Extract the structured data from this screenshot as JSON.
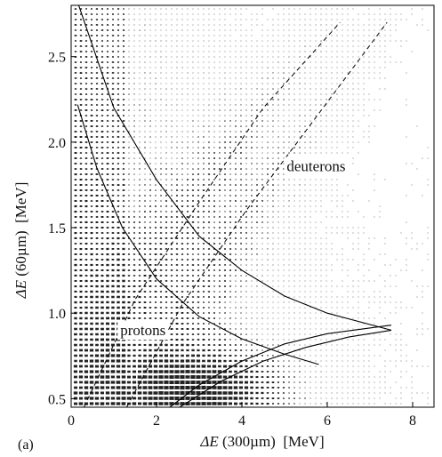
{
  "chart_data": {
    "type": "scatter",
    "panel_label": "(a)",
    "xlabel": {
      "symbol": "ΔE",
      "rest": " (300µm)  [MeV]"
    },
    "ylabel": {
      "symbol": "ΔE",
      "rest": " (60µm)  [MeV]"
    },
    "xlim": [
      0,
      8.5
    ],
    "ylim": [
      0.45,
      2.8
    ],
    "x_ticks": [
      0,
      2,
      4,
      6,
      8
    ],
    "y_ticks": [
      0.5,
      1.0,
      1.5,
      2.0,
      2.5
    ],
    "x_tick_labels": [
      "0",
      "2",
      "4",
      "6",
      "8"
    ],
    "y_tick_labels": [
      "0.5",
      "1.0",
      "1.5",
      "2.0",
      "2.5"
    ],
    "annotations": [
      {
        "text": "deuterons",
        "x": 5.05,
        "y": 1.83
      },
      {
        "text": "protons",
        "x": 1.15,
        "y": 0.87
      }
    ],
    "series": [
      {
        "style": "solid",
        "points": [
          [
            0.15,
            2.82
          ],
          [
            1.0,
            2.2
          ],
          [
            2.0,
            1.78
          ],
          [
            3.0,
            1.45
          ],
          [
            4.0,
            1.25
          ],
          [
            5.0,
            1.1
          ],
          [
            6.0,
            1.0
          ],
          [
            7.5,
            0.9
          ]
        ]
      },
      {
        "style": "solid",
        "points": [
          [
            0.15,
            2.22
          ],
          [
            0.6,
            1.85
          ],
          [
            1.2,
            1.5
          ],
          [
            2.0,
            1.2
          ],
          [
            3.0,
            0.98
          ],
          [
            4.0,
            0.85
          ],
          [
            5.0,
            0.76
          ],
          [
            5.8,
            0.7
          ]
        ]
      },
      {
        "style": "solid",
        "points": [
          [
            2.15,
            0.42
          ],
          [
            3.0,
            0.58
          ],
          [
            4.0,
            0.72
          ],
          [
            5.0,
            0.82
          ],
          [
            6.0,
            0.88
          ],
          [
            7.5,
            0.93
          ]
        ]
      },
      {
        "style": "solid",
        "points": [
          [
            2.35,
            0.42
          ],
          [
            3.5,
            0.6
          ],
          [
            4.5,
            0.72
          ],
          [
            5.5,
            0.8
          ],
          [
            6.5,
            0.86
          ],
          [
            7.5,
            0.9
          ]
        ]
      },
      {
        "style": "dashed",
        "points": [
          [
            0.3,
            0.45
          ],
          [
            1.5,
            1.08
          ],
          [
            3.0,
            1.65
          ],
          [
            4.5,
            2.2
          ],
          [
            6.3,
            2.7
          ]
        ]
      },
      {
        "style": "dashed",
        "points": [
          [
            1.3,
            0.45
          ],
          [
            2.6,
            1.05
          ],
          [
            4.1,
            1.6
          ],
          [
            5.6,
            2.1
          ],
          [
            7.4,
            2.7
          ]
        ]
      }
    ]
  }
}
